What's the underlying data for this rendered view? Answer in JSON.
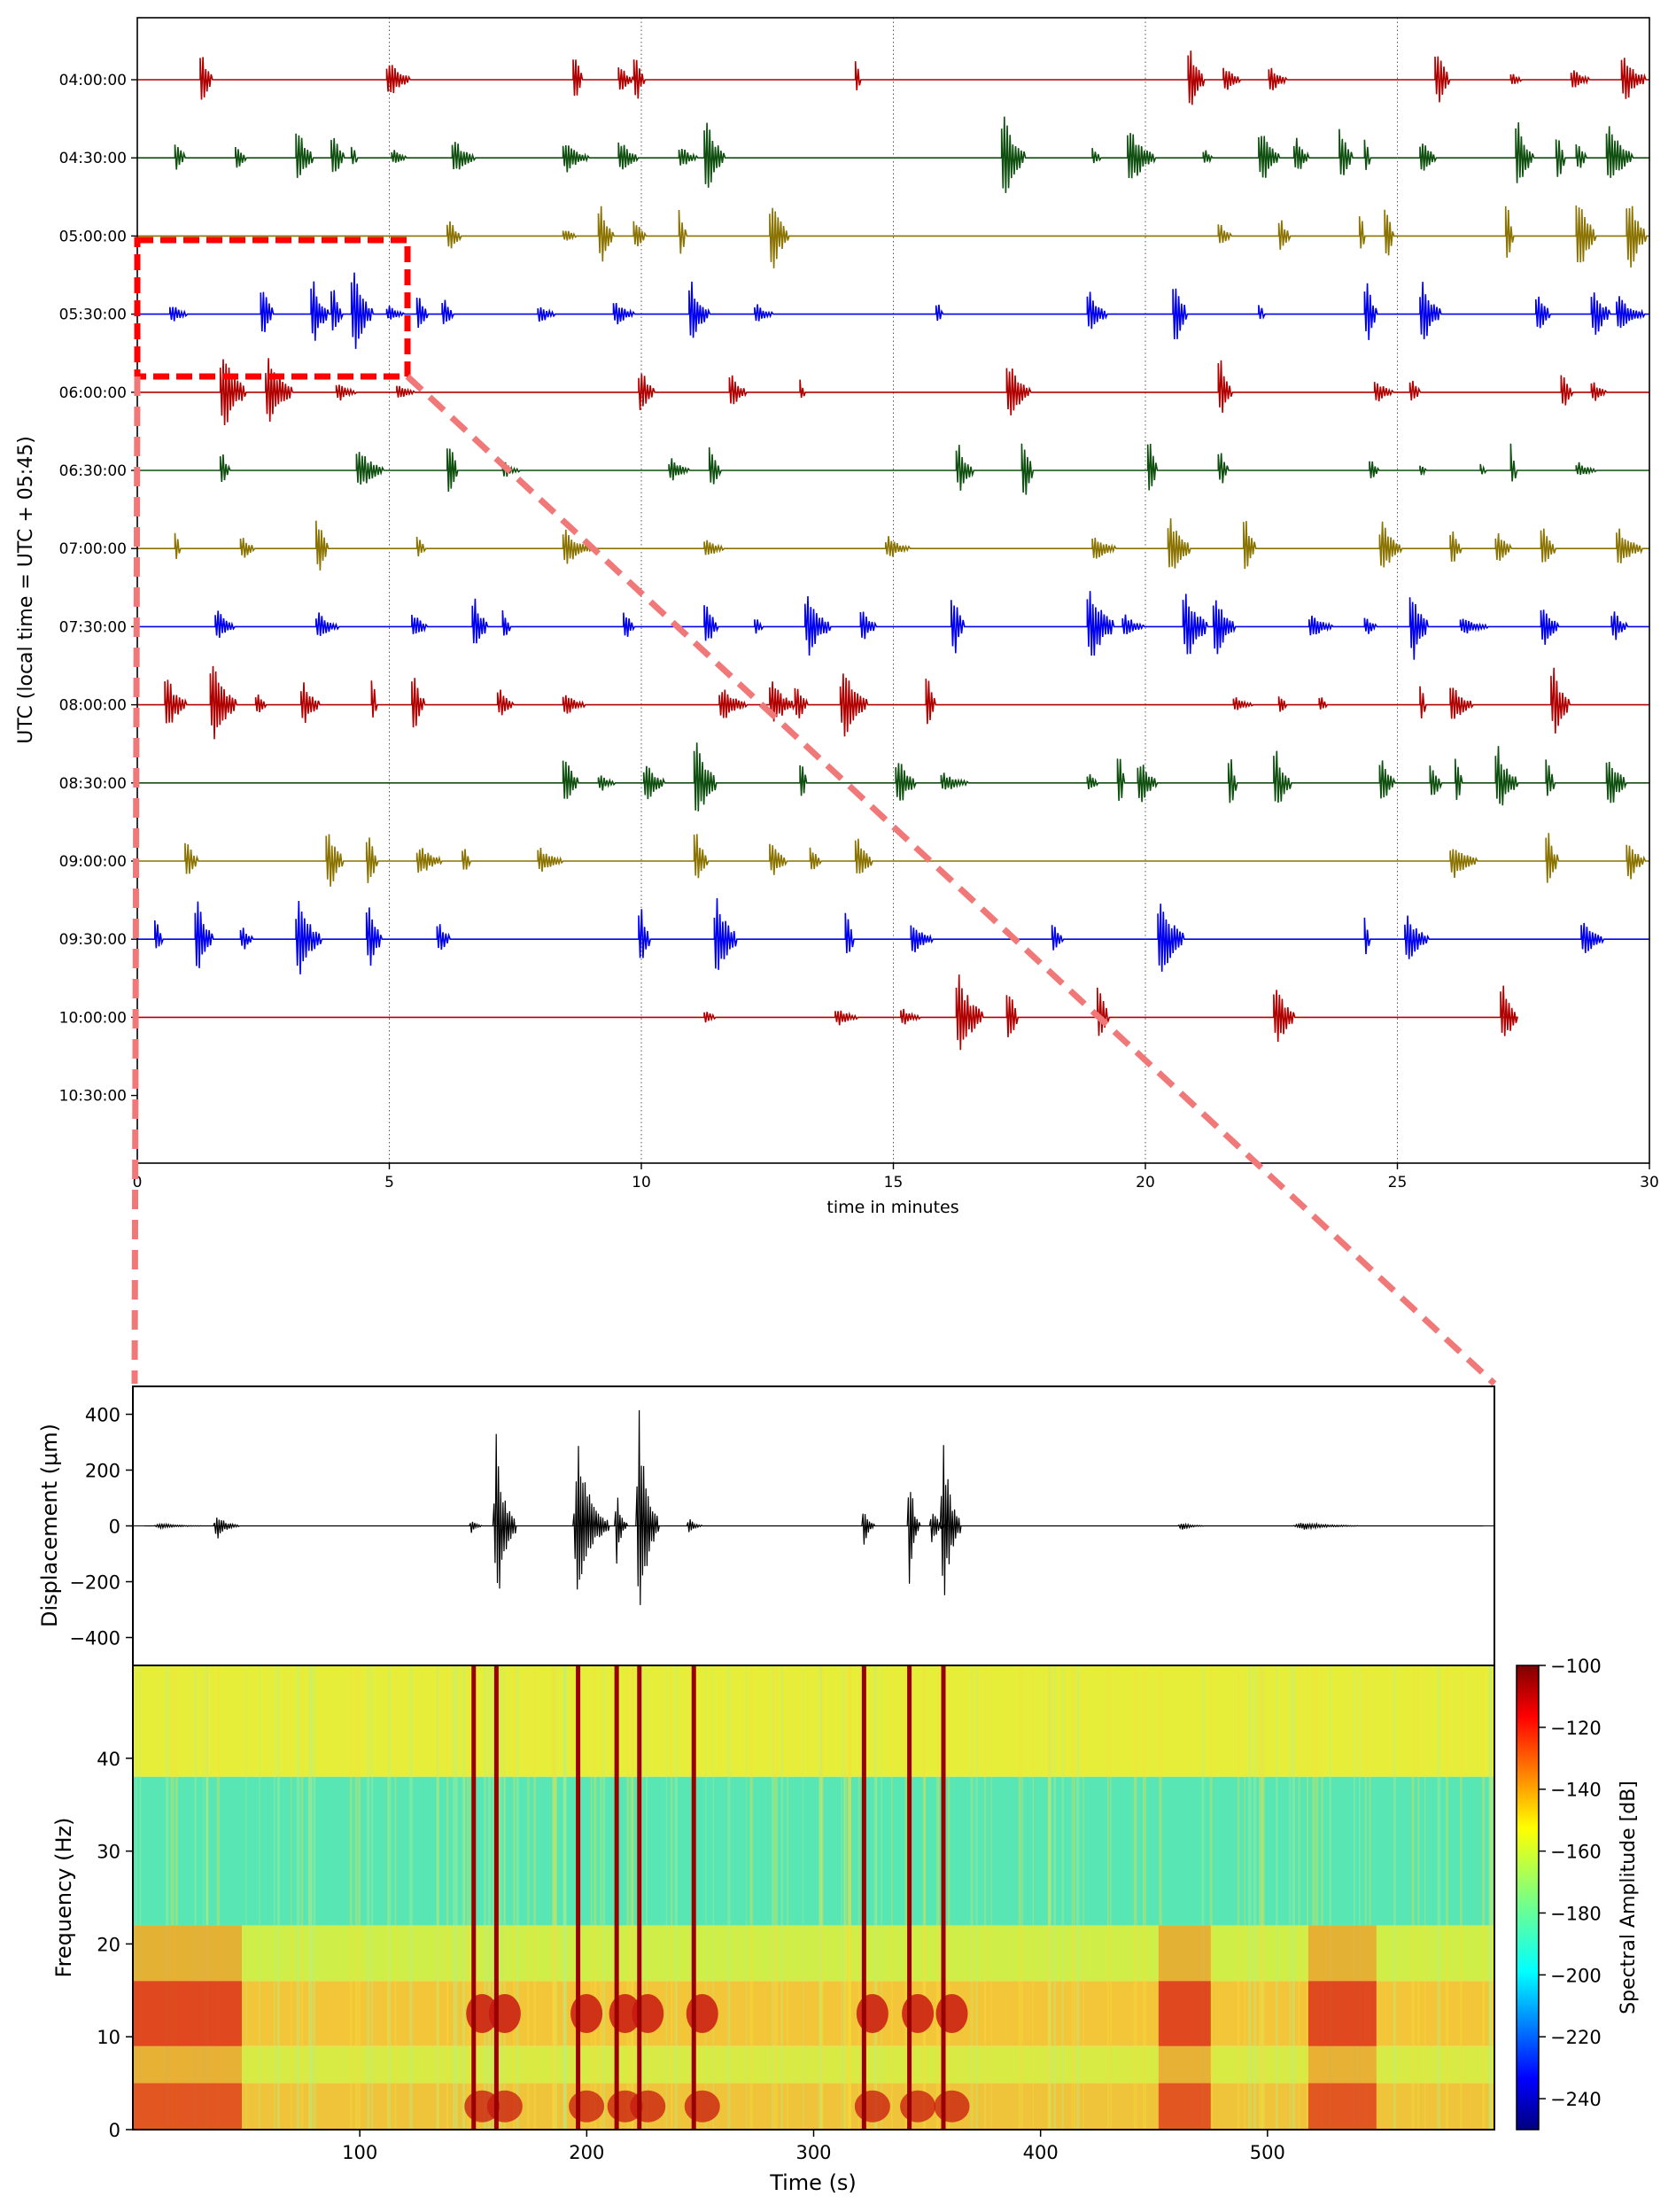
{
  "chart_data": [
    {
      "type": "line",
      "subtype": "helicorder",
      "xlabel": "time in minutes",
      "ylabel": "UTC (local time = UTC + 05:45)",
      "xlim": [
        0,
        30
      ],
      "xticks": [
        0,
        5,
        10,
        15,
        20,
        25,
        30
      ],
      "grid": "vertical dotted lines at 5-minute ticks",
      "ytick_labels": [
        "04:00:00",
        "04:30:00",
        "05:00:00",
        "05:30:00",
        "06:00:00",
        "06:30:00",
        "07:00:00",
        "07:30:00",
        "08:00:00",
        "08:30:00",
        "09:00:00",
        "09:30:00",
        "10:00:00",
        "10:30:00"
      ],
      "trace_colors": [
        "#b00000",
        "#0f4f0f",
        "#8a7300",
        "#0000ee"
      ],
      "line_end_minutes": [
        30,
        30,
        30,
        30,
        30,
        30,
        30,
        30,
        30,
        30,
        30,
        30,
        27.1,
        0
      ],
      "events_minutes": [
        [
          1.3,
          5.0,
          8.7,
          9.6,
          9.9,
          14.3,
          20.9,
          21.6,
          22.5,
          25.8,
          27.3,
          28.5,
          29.5
        ],
        [
          0.8,
          2.0,
          3.2,
          3.9,
          4.3,
          5.1,
          6.3,
          8.5,
          9.6,
          10.8,
          11.3,
          17.2,
          19.0,
          19.7,
          21.2,
          22.3,
          23.0,
          23.9,
          24.4,
          25.5,
          27.4,
          28.2,
          28.6,
          29.2
        ],
        [
          6.2,
          8.5,
          9.2,
          9.9,
          10.8,
          12.6,
          21.5,
          22.7,
          24.3,
          24.8,
          27.2,
          28.6,
          29.6
        ],
        [
          0.7,
          2.5,
          3.5,
          3.9,
          4.3,
          5.0,
          5.6,
          6.1,
          8.0,
          9.5,
          11.0,
          12.3,
          15.9,
          18.9,
          20.6,
          22.3,
          24.4,
          25.5,
          27.8,
          28.9,
          29.4
        ],
        [
          1.7,
          2.6,
          4.0,
          5.2,
          10.0,
          11.8,
          13.2,
          17.3,
          21.5,
          24.6,
          25.3,
          28.3,
          28.9
        ],
        [
          1.7,
          4.4,
          6.2,
          7.3,
          10.6,
          11.4,
          16.3,
          17.6,
          20.1,
          21.5,
          24.5,
          25.5,
          26.7,
          27.3,
          28.6
        ],
        [
          0.8,
          2.1,
          3.6,
          5.6,
          8.5,
          11.3,
          14.9,
          19.0,
          20.5,
          22.0,
          24.7,
          26.1,
          27.0,
          27.9,
          29.4
        ],
        [
          1.6,
          3.6,
          5.5,
          6.7,
          7.3,
          9.7,
          11.3,
          12.3,
          13.3,
          14.4,
          16.2,
          18.9,
          19.6,
          20.8,
          21.4,
          23.3,
          24.4,
          25.3,
          26.3,
          27.9,
          29.3
        ],
        [
          0.6,
          1.5,
          2.4,
          3.3,
          4.7,
          5.5,
          7.2,
          8.5,
          11.6,
          12.6,
          13.1,
          14.0,
          15.7,
          21.8,
          22.7,
          23.5,
          25.5,
          26.1,
          28.1
        ],
        [
          8.5,
          9.2,
          10.1,
          11.1,
          13.2,
          15.1,
          16.0,
          18.9,
          19.5,
          19.9,
          21.7,
          22.6,
          24.7,
          25.7,
          26.2,
          27.0,
          28.0,
          29.2
        ],
        [
          1.0,
          3.8,
          4.6,
          5.6,
          6.5,
          8.0,
          11.1,
          12.6,
          13.4,
          14.3,
          26.1,
          28.0,
          29.6
        ],
        [
          0.4,
          1.2,
          2.1,
          3.2,
          4.6,
          6.0,
          10.0,
          11.5,
          14.1,
          15.4,
          18.2,
          20.3,
          24.4,
          25.2,
          28.7
        ],
        [
          11.3,
          13.9,
          15.2,
          16.3,
          17.3,
          19.1,
          22.6,
          27.1
        ],
        []
      ]
    },
    {
      "type": "line",
      "xlabel": "",
      "ylabel": "Displacement (μm)",
      "xlim": [
        0,
        600
      ],
      "ylim": [
        -500,
        500
      ],
      "yticks": [
        "400",
        "200",
        "0",
        "−200",
        "−400"
      ],
      "color": "#000000",
      "events": [
        {
          "t": 12,
          "amp": 10,
          "dur": 18
        },
        {
          "t": 37,
          "amp": 50,
          "dur": 10
        },
        {
          "t": 149,
          "amp": 30,
          "dur": 5
        },
        {
          "t": 160,
          "amp": 350,
          "dur": 9
        },
        {
          "t": 196,
          "amp": 300,
          "dur": 14
        },
        {
          "t": 213,
          "amp": 150,
          "dur": 5
        },
        {
          "t": 223,
          "amp": 450,
          "dur": 9
        },
        {
          "t": 245,
          "amp": 30,
          "dur": 6
        },
        {
          "t": 322,
          "amp": 80,
          "dur": 5
        },
        {
          "t": 342,
          "amp": 240,
          "dur": 5
        },
        {
          "t": 352,
          "amp": 80,
          "dur": 6
        },
        {
          "t": 357,
          "amp": 350,
          "dur": 8
        },
        {
          "t": 462,
          "amp": 15,
          "dur": 10
        },
        {
          "t": 515,
          "amp": 15,
          "dur": 25
        }
      ]
    },
    {
      "type": "heatmap",
      "subtype": "spectrogram",
      "xlabel": "Time (s)",
      "ylabel": "Frequency (Hz)",
      "xlim": [
        0,
        600
      ],
      "ylim": [
        0,
        50
      ],
      "xticks": [
        "100",
        "200",
        "300",
        "400",
        "500"
      ],
      "yticks": [
        "0",
        "10",
        "20",
        "30",
        "40"
      ],
      "colorscale": "jet",
      "colorbar_label": "Spectral Amplitude [dB]",
      "colorbar_range": [
        -250,
        -100
      ],
      "colorbar_ticks": [
        "−100",
        "−120",
        "−140",
        "−160",
        "−180",
        "−200",
        "−220",
        "−240"
      ],
      "spectral_lines_s": [
        150,
        160,
        196,
        213,
        223,
        247,
        322,
        342,
        357
      ],
      "noise_bands_s": [
        [
          0,
          48
        ],
        [
          452,
          475
        ],
        [
          518,
          548
        ]
      ]
    }
  ]
}
